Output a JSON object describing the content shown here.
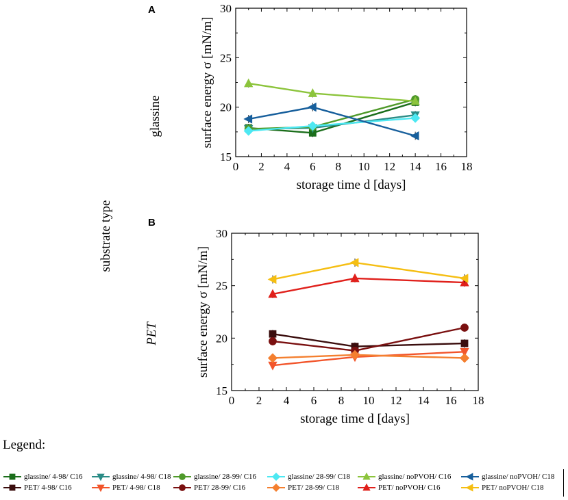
{
  "figure": {
    "row_title": "substrate type",
    "legend_title": "Legend:"
  },
  "colors": {
    "glassine_4_98_C16": "#1b6e1b",
    "glassine_4_98_C18": "#2a8c86",
    "glassine_28_99_C16": "#4f9a2a",
    "glassine_28_99_C18": "#4de8f2",
    "glassine_noPVOH_C16": "#8cc43c",
    "glassine_noPVOH_C18": "#175f9c",
    "PET_4_98_C16": "#3a0d0d",
    "PET_4_98_C18": "#f2552b",
    "PET_28_99_C16": "#7a1010",
    "PET_28_99_C18": "#f47f2f",
    "PET_noPVOH_C16": "#e0201b",
    "PET_noPVOH_C18": "#f5be12"
  },
  "chart_data": [
    {
      "type": "line",
      "panel": "A",
      "row_label": "glassine",
      "xlabel": "storage time d [days]",
      "ylabel": "surface energy σ [mN/m]",
      "xlim": [
        0,
        18
      ],
      "ylim": [
        15,
        30
      ],
      "xticks": [
        0,
        2,
        4,
        6,
        8,
        10,
        12,
        14,
        16,
        18
      ],
      "yticks": [
        15,
        20,
        25,
        30
      ],
      "grid": false,
      "x": [
        1,
        6,
        14
      ],
      "series": [
        {
          "name": "glassine/ 4-98/ C16",
          "marker": "square",
          "color": "#1b6e1b",
          "values": [
            17.9,
            17.4,
            20.5
          ]
        },
        {
          "name": "glassine/ 4-98/ C18",
          "marker": "triangle-down",
          "color": "#2a8c86",
          "values": [
            17.8,
            17.9,
            19.2
          ]
        },
        {
          "name": "glassine/ 28-99/ C16",
          "marker": "circle",
          "color": "#4f9a2a",
          "values": [
            17.8,
            18.0,
            20.8
          ]
        },
        {
          "name": "glassine/ 28-99/ C18",
          "marker": "diamond",
          "color": "#4de8f2",
          "values": [
            17.6,
            18.1,
            18.9
          ]
        },
        {
          "name": "glassine/ noPVOH/ C16",
          "marker": "triangle-up",
          "color": "#8cc43c",
          "values": [
            22.4,
            21.4,
            20.6
          ]
        },
        {
          "name": "glassine/ noPVOH/ C18",
          "marker": "triangle-left",
          "color": "#175f9c",
          "values": [
            18.8,
            20.0,
            17.1
          ]
        }
      ]
    },
    {
      "type": "line",
      "panel": "B",
      "row_label": "PET",
      "xlabel": "storage time d [days]",
      "ylabel": "surface energy σ [mN/m]",
      "xlim": [
        0,
        18
      ],
      "ylim": [
        15,
        30
      ],
      "xticks": [
        0,
        2,
        4,
        6,
        8,
        10,
        12,
        14,
        16,
        18
      ],
      "yticks": [
        15,
        20,
        25,
        30
      ],
      "grid": false,
      "x": [
        3,
        9,
        17
      ],
      "series": [
        {
          "name": "PET/ 4-98/ C16",
          "marker": "square",
          "color": "#3a0d0d",
          "values": [
            20.4,
            19.2,
            19.5
          ]
        },
        {
          "name": "PET/ 4-98/ C18",
          "marker": "triangle-down",
          "color": "#f2552b",
          "values": [
            17.4,
            18.2,
            18.7
          ]
        },
        {
          "name": "PET/ 28-99/ C16",
          "marker": "circle",
          "color": "#7a1010",
          "values": [
            19.7,
            18.8,
            21.0
          ]
        },
        {
          "name": "PET/ 28-99/ C18",
          "marker": "diamond",
          "color": "#f47f2f",
          "values": [
            18.1,
            18.4,
            18.1
          ]
        },
        {
          "name": "PET/ noPVOH/ C16",
          "marker": "triangle-up",
          "color": "#e0201b",
          "values": [
            24.2,
            25.7,
            25.3
          ]
        },
        {
          "name": "PET/ noPVOH/ C18",
          "marker": "triangle-left",
          "color": "#f5be12",
          "values": [
            25.6,
            27.2,
            25.7
          ]
        }
      ]
    }
  ]
}
